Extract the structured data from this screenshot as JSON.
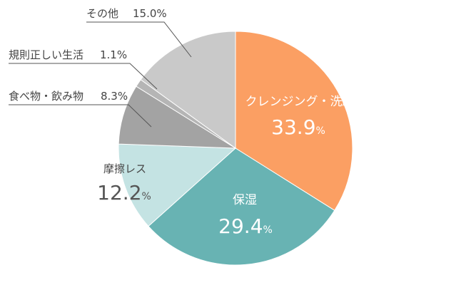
{
  "chart_data": {
    "type": "pie",
    "slices": [
      {
        "label": "クレンジング・洗顔",
        "value": 33.9,
        "display": "33.9",
        "color": "#FB9F63"
      },
      {
        "label": "保湿",
        "value": 29.4,
        "display": "29.4",
        "color": "#68B3B3"
      },
      {
        "label": "摩擦レス",
        "value": 12.2,
        "display": "12.2",
        "color": "#C4E3E3"
      },
      {
        "label": "食べ物・飲み物",
        "value": 8.3,
        "display": "8.3",
        "color": "#A3A3A3"
      },
      {
        "label": "規則正しい生活",
        "value": 1.1,
        "display": "1.1",
        "color": "#B5B5B5"
      },
      {
        "label": "その他",
        "value": 15.0,
        "display": "15.0",
        "color": "#C9C9C9"
      }
    ],
    "unit": "%"
  }
}
